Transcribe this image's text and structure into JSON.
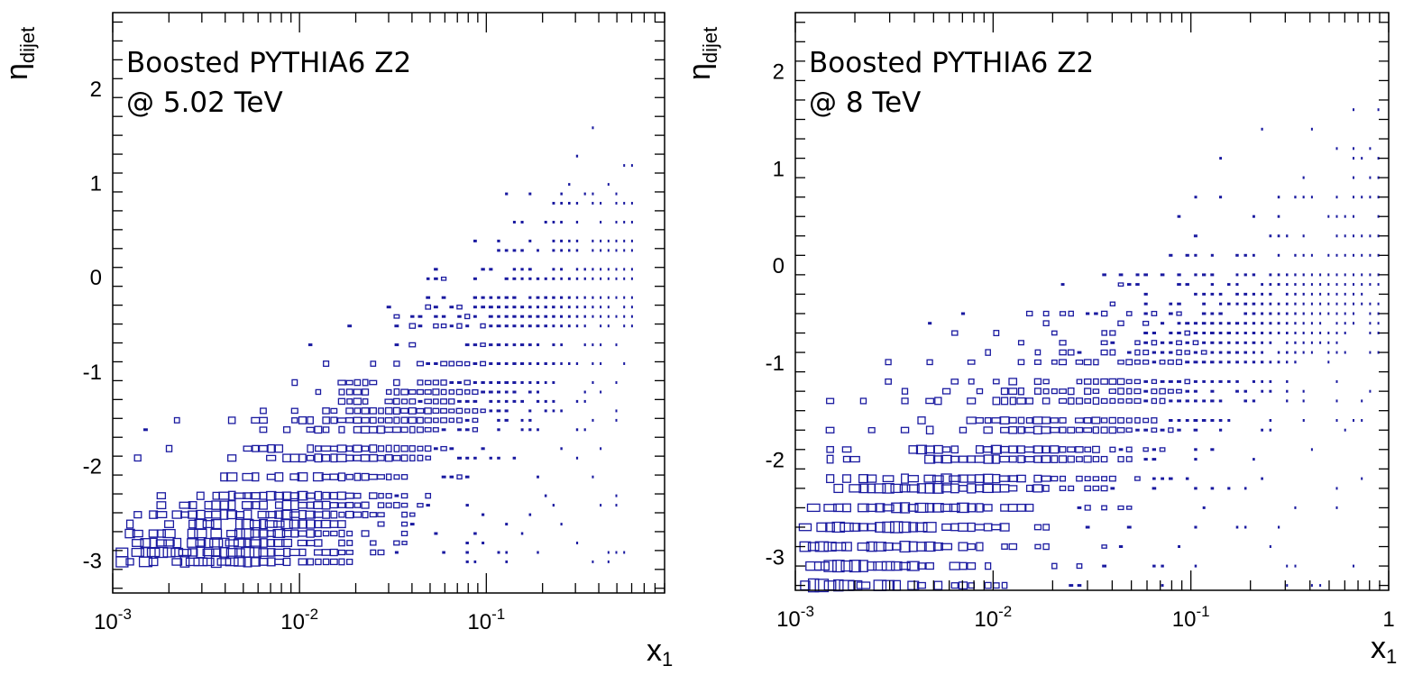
{
  "chart_data": [
    {
      "type": "heatmap",
      "title": "",
      "annotation": [
        "Boosted PYTHIA6 Z2",
        "@ 5.02 TeV"
      ],
      "xlabel": {
        "main": "x",
        "sub": "1"
      },
      "ylabel": {
        "main": "η",
        "sub": "dijet"
      },
      "x_scale": "log",
      "xlim": [
        0.001,
        0.9
      ],
      "ylim": [
        -3.35,
        2.8
      ],
      "x_ticks": [
        {
          "value": 0.001,
          "base": "10",
          "exp": "-3"
        },
        {
          "value": 0.01,
          "base": "10",
          "exp": "-2"
        },
        {
          "value": 0.1,
          "base": "10",
          "exp": "-1"
        }
      ],
      "y_ticks": [
        -3,
        -2,
        -1,
        0,
        1,
        2
      ],
      "box_color": "#1a1aa0",
      "grid": false,
      "band": {
        "y_start": -3.02,
        "x_start": -2.4,
        "x_end": -0.2,
        "y_slope": 1.5,
        "y_half_width": 1.0
      }
    },
    {
      "type": "heatmap",
      "title": "",
      "annotation": [
        "Boosted PYTHIA6 Z2",
        "@ 8 TeV"
      ],
      "xlabel": {
        "main": "x",
        "sub": "1"
      },
      "ylabel": {
        "main": "η",
        "sub": "dijet"
      },
      "x_scale": "log",
      "xlim": [
        0.001,
        1
      ],
      "ylim": [
        -3.35,
        2.6
      ],
      "x_ticks": [
        {
          "value": 0.001,
          "base": "10",
          "exp": "-3"
        },
        {
          "value": 0.01,
          "base": "10",
          "exp": "-2"
        },
        {
          "value": 0.1,
          "base": "10",
          "exp": "-1"
        },
        {
          "value": 1,
          "base": "1",
          "exp": ""
        }
      ],
      "y_ticks": [
        -3,
        -2,
        -1,
        0,
        1,
        2
      ],
      "box_color": "#1a1aa0",
      "grid": false,
      "band": {
        "y_start": -3.3,
        "x_start": -2.9,
        "x_end": -0.05,
        "y_slope": 1.2,
        "y_half_width": 1.2
      }
    }
  ]
}
